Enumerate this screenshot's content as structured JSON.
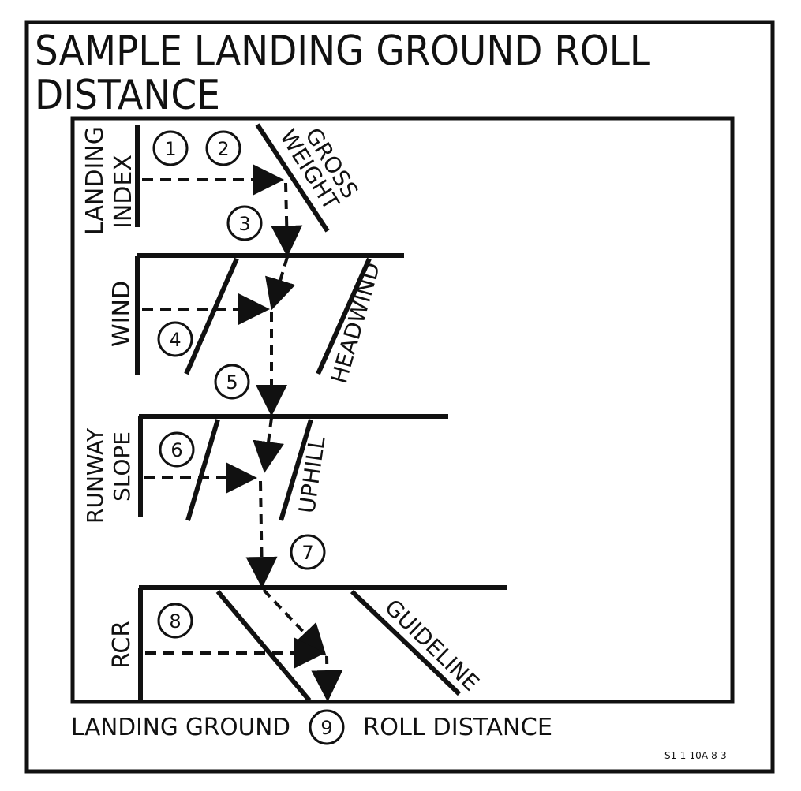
{
  "title_line1": "SAMPLE LANDING GROUND ROLL",
  "title_line2": "DISTANCE",
  "sections": {
    "landing_index": {
      "line1": "LANDING",
      "line2": "INDEX"
    },
    "gross_weight": {
      "line1": "GROSS",
      "line2": "WEIGHT"
    },
    "wind": "WIND",
    "headwind": "HEADWIND",
    "runway_slope": {
      "line1": "RUNWAY",
      "line2": "SLOPE"
    },
    "uphill": "UPHILL",
    "rcr": "RCR",
    "guideline": "GUIDELINE"
  },
  "steps": [
    "1",
    "2",
    "3",
    "4",
    "5",
    "6",
    "7",
    "8",
    "9"
  ],
  "bottom_label_left": "LANDING GROUND",
  "bottom_label_right": "ROLL DISTANCE",
  "figure_id": "S1-1-10A-8-3",
  "colors": {
    "ink": "#111111",
    "paper": "#ffffff"
  }
}
